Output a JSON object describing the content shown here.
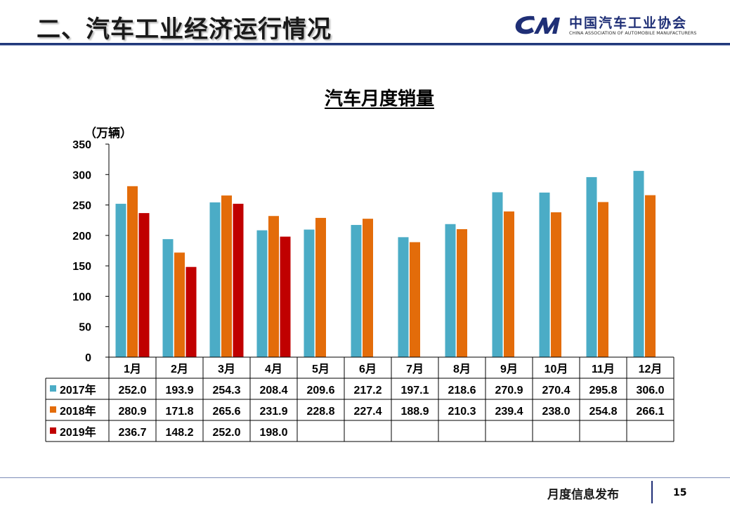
{
  "slide": {
    "title": "二、汽车工业经济运行情况",
    "logo_cn": "中国汽车工业协会",
    "logo_en": "CHINA ASSOCIATION OF AUTOMOBILE MANUFACTURERS",
    "footer_text": "月度信息发布",
    "page_number": "15"
  },
  "colors": {
    "s2017": "#4bacc6",
    "s2018": "#e36c0a",
    "s2019": "#c00000",
    "rule": "#20377a"
  },
  "chart_data": {
    "type": "bar",
    "title": "汽车月度销量",
    "unit_label": "（万辆）",
    "xlabel": "",
    "ylabel": "（万辆）",
    "ylim": [
      0,
      350
    ],
    "yticks": [
      "0",
      "50",
      "100",
      "150",
      "200",
      "250",
      "300",
      "350"
    ],
    "categories": [
      "1月",
      "2月",
      "3月",
      "4月",
      "5月",
      "6月",
      "7月",
      "8月",
      "9月",
      "10月",
      "11月",
      "12月"
    ],
    "series": [
      {
        "name": "2017年",
        "values": [
          252.0,
          193.9,
          254.3,
          208.4,
          209.6,
          217.2,
          197.1,
          218.6,
          270.9,
          270.4,
          295.8,
          306.0
        ],
        "labels": [
          "252.0",
          "193.9",
          "254.3",
          "208.4",
          "209.6",
          "217.2",
          "197.1",
          "218.6",
          "270.9",
          "270.4",
          "295.8",
          "306.0"
        ]
      },
      {
        "name": "2018年",
        "values": [
          280.9,
          171.8,
          265.6,
          231.9,
          228.8,
          227.4,
          188.9,
          210.3,
          239.4,
          238.0,
          254.8,
          266.1
        ],
        "labels": [
          "280.9",
          "171.8",
          "265.6",
          "231.9",
          "228.8",
          "227.4",
          "188.9",
          "210.3",
          "239.4",
          "238.0",
          "254.8",
          "266.1"
        ]
      },
      {
        "name": "2019年",
        "values": [
          236.7,
          148.2,
          252.0,
          198.0,
          null,
          null,
          null,
          null,
          null,
          null,
          null,
          null
        ],
        "labels": [
          "236.7",
          "148.2",
          "252.0",
          "198.0",
          "",
          "",
          "",
          "",
          "",
          "",
          "",
          ""
        ]
      }
    ],
    "grid": false,
    "legend": "data-table-left"
  }
}
